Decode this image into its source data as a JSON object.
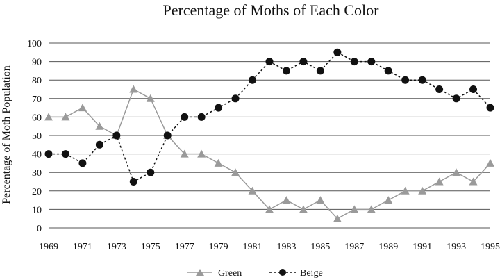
{
  "chart_data": {
    "type": "line",
    "title": "Percentage of Moths of Each Color",
    "xlabel": "",
    "ylabel": "Percentage of Moth Population",
    "x": [
      1969,
      1970,
      1971,
      1972,
      1973,
      1974,
      1975,
      1976,
      1977,
      1978,
      1979,
      1980,
      1981,
      1982,
      1983,
      1984,
      1985,
      1986,
      1987,
      1988,
      1989,
      1990,
      1991,
      1992,
      1993,
      1994,
      1995
    ],
    "x_tick_labels": [
      "1969",
      "1971",
      "1973",
      "1975",
      "1977",
      "1979",
      "1981",
      "1983",
      "1985",
      "1987",
      "1989",
      "1991",
      "1993",
      "1995"
    ],
    "y_tick_labels": [
      "0",
      "10",
      "20",
      "30",
      "40",
      "50",
      "60",
      "70",
      "80",
      "90",
      "100"
    ],
    "ylim": [
      0,
      100
    ],
    "grid": "horizontal",
    "legend_position": "bottom",
    "series": [
      {
        "name": "Green",
        "color": "#9a9a9a",
        "marker": "triangle",
        "line_style": "solid",
        "values": [
          60,
          60,
          65,
          55,
          50,
          75,
          70,
          50,
          40,
          40,
          35,
          30,
          20,
          10,
          15,
          10,
          15,
          5,
          10,
          10,
          15,
          20,
          20,
          25,
          30,
          25,
          35
        ]
      },
      {
        "name": "Beige",
        "color": "#111111",
        "marker": "circle",
        "line_style": "dashed",
        "values": [
          40,
          40,
          35,
          45,
          50,
          25,
          30,
          50,
          60,
          60,
          65,
          70,
          80,
          90,
          85,
          90,
          85,
          95,
          90,
          90,
          85,
          80,
          80,
          75,
          70,
          75,
          65
        ]
      }
    ]
  }
}
